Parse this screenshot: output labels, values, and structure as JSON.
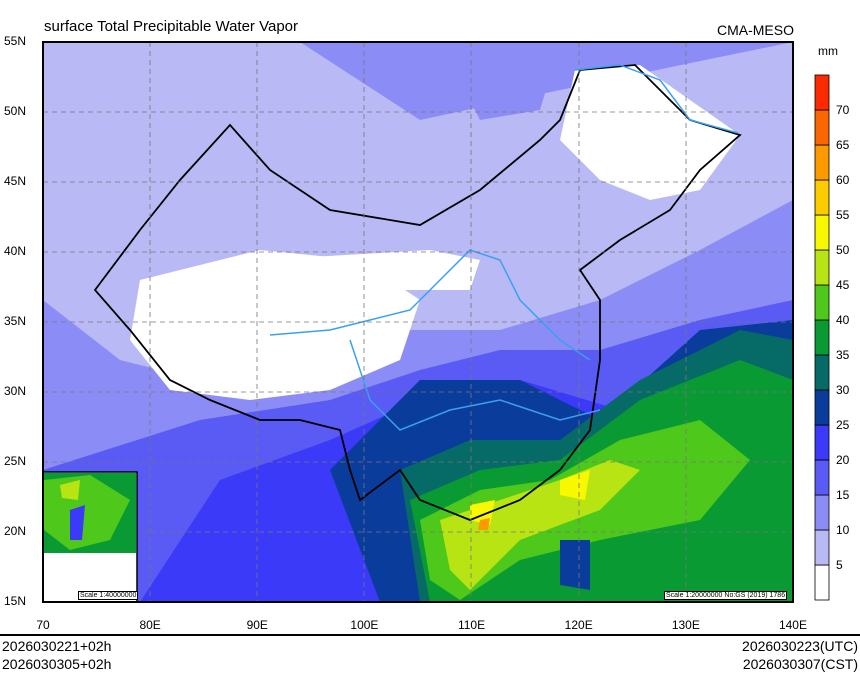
{
  "title": "surface Total Precipitable Water Vapor",
  "model": "CMA-MESO",
  "unit": "mm",
  "lat_labels": [
    "15N",
    "20N",
    "25N",
    "30N",
    "35N",
    "40N",
    "45N",
    "50N",
    "55N"
  ],
  "lon_labels": [
    "70",
    "80E",
    "90E",
    "100E",
    "110E",
    "120E",
    "130E",
    "140E"
  ],
  "colorbar": {
    "levels": [
      "5",
      "10",
      "15",
      "20",
      "25",
      "30",
      "35",
      "40",
      "45",
      "50",
      "55",
      "60",
      "65",
      "70"
    ],
    "colors": [
      "#ffffff",
      "#b9b9f5",
      "#8c8cf7",
      "#5a5af5",
      "#3a3af8",
      "#0a3c9c",
      "#066a66",
      "#0a9a34",
      "#4ec81a",
      "#b8e414",
      "#f8f800",
      "#fccc00",
      "#fc9a00",
      "#fc6600",
      "#fc2a00"
    ]
  },
  "inset_scale": "Scale 1:40000000",
  "main_scale": "Scale 1:20000000 No:GS (2019) 1786",
  "footer": {
    "init_left": "2026030221+02h",
    "valid_left": "2026030305+02h",
    "utc_right": "2026030223(UTC)",
    "cst_right": "2026030307(CST)"
  }
}
